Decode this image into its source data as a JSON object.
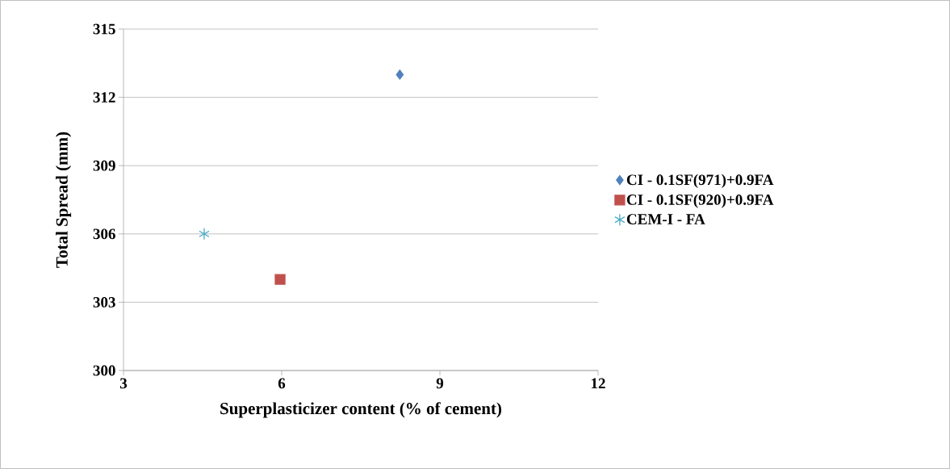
{
  "chart_data": {
    "type": "scatter",
    "xlabel": "Superplasticizer content (% of cement)",
    "ylabel": "Total Spread (mm)",
    "xlim": [
      3,
      12
    ],
    "xticks": [
      3,
      6,
      9,
      12
    ],
    "ylim": [
      300,
      315
    ],
    "yticks": [
      300,
      303,
      306,
      309,
      312,
      315
    ],
    "grid": "y",
    "legend": "right",
    "series": [
      {
        "name": "CI - 0.1SF(971)+0.9FA",
        "color": "#4f81bd",
        "marker": "diamond",
        "x": [
          8.24
        ],
        "values": [
          313
        ]
      },
      {
        "name": "CI - 0.1SF(920)+0.9FA",
        "color": "#c0504d",
        "marker": "square",
        "x": [
          5.97
        ],
        "values": [
          304
        ]
      },
      {
        "name": "CEM-I - FA",
        "color": "#4bacc6",
        "marker": "cross",
        "x": [
          4.53
        ],
        "values": [
          306
        ]
      }
    ]
  }
}
